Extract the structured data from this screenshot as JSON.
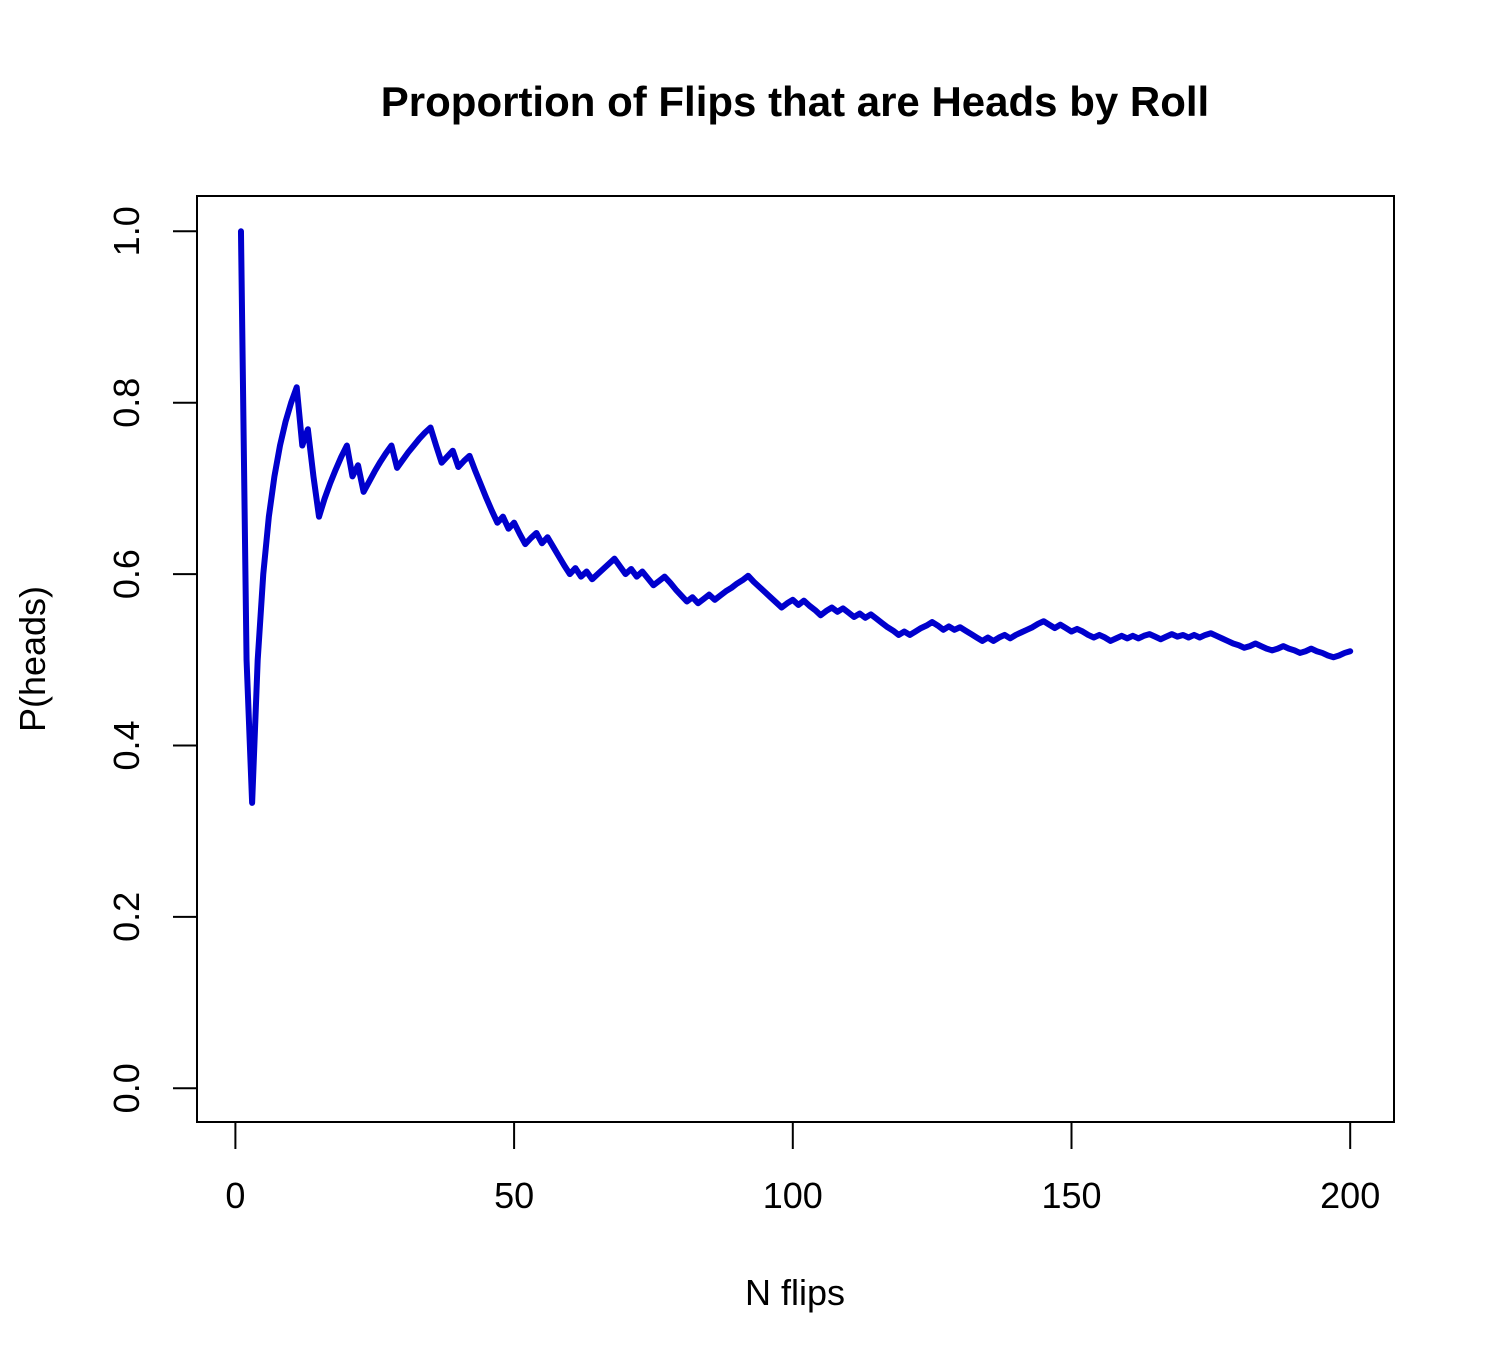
{
  "chart_data": {
    "type": "line",
    "title": "Proportion of Flips that are Heads by Roll",
    "xlabel": "N flips",
    "ylabel": "P(heads)",
    "xlim": [
      0,
      200
    ],
    "ylim": [
      0,
      1.0
    ],
    "x_ticks": [
      0,
      50,
      100,
      150,
      200
    ],
    "x_tick_labels": [
      "0",
      "50",
      "100",
      "150",
      "200"
    ],
    "y_ticks": [
      0.0,
      0.2,
      0.4,
      0.6,
      0.8,
      1.0
    ],
    "y_tick_labels": [
      "0.0",
      "0.2",
      "0.4",
      "0.6",
      "0.8",
      "1.0"
    ],
    "grid": false,
    "series": [
      {
        "color": "#0000cd",
        "x": [
          1,
          2,
          3,
          4,
          5,
          6,
          7,
          8,
          9,
          10,
          11,
          12,
          13,
          14,
          15,
          16,
          17,
          18,
          19,
          20,
          21,
          22,
          23,
          24,
          25,
          26,
          27,
          28,
          29,
          30,
          31,
          32,
          33,
          34,
          35,
          36,
          37,
          38,
          39,
          40,
          41,
          42,
          43,
          44,
          45,
          46,
          47,
          48,
          49,
          50,
          51,
          52,
          53,
          54,
          55,
          56,
          57,
          58,
          59,
          60,
          61,
          62,
          63,
          64,
          65,
          66,
          67,
          68,
          69,
          70,
          71,
          72,
          73,
          74,
          75,
          76,
          77,
          78,
          79,
          80,
          81,
          82,
          83,
          84,
          85,
          86,
          87,
          88,
          89,
          90,
          91,
          92,
          93,
          94,
          95,
          96,
          97,
          98,
          99,
          100,
          101,
          102,
          103,
          104,
          105,
          106,
          107,
          108,
          109,
          110,
          111,
          112,
          113,
          114,
          115,
          116,
          117,
          118,
          119,
          120,
          121,
          122,
          123,
          124,
          125,
          126,
          127,
          128,
          129,
          130,
          131,
          132,
          133,
          134,
          135,
          136,
          137,
          138,
          139,
          140,
          141,
          142,
          143,
          144,
          145,
          146,
          147,
          148,
          149,
          150,
          151,
          152,
          153,
          154,
          155,
          156,
          157,
          158,
          159,
          160,
          161,
          162,
          163,
          164,
          165,
          166,
          167,
          168,
          169,
          170,
          171,
          172,
          173,
          174,
          175,
          176,
          177,
          178,
          179,
          180,
          181,
          182,
          183,
          184,
          185,
          186,
          187,
          188,
          189,
          190,
          191,
          192,
          193,
          194,
          195,
          196,
          197,
          198,
          199,
          200
        ],
        "y": [
          1.0,
          0.5,
          0.333,
          0.5,
          0.6,
          0.667,
          0.714,
          0.75,
          0.778,
          0.8,
          0.818,
          0.75,
          0.769,
          0.714,
          0.667,
          0.688,
          0.706,
          0.722,
          0.737,
          0.75,
          0.714,
          0.727,
          0.696,
          0.708,
          0.72,
          0.731,
          0.741,
          0.75,
          0.724,
          0.733,
          0.742,
          0.75,
          0.758,
          0.765,
          0.771,
          0.75,
          0.73,
          0.737,
          0.744,
          0.725,
          0.732,
          0.738,
          0.721,
          0.705,
          0.689,
          0.674,
          0.66,
          0.667,
          0.653,
          0.66,
          0.647,
          0.635,
          0.642,
          0.648,
          0.636,
          0.643,
          0.632,
          0.621,
          0.61,
          0.6,
          0.607,
          0.597,
          0.603,
          0.594,
          0.6,
          0.606,
          0.612,
          0.618,
          0.609,
          0.6,
          0.606,
          0.597,
          0.603,
          0.595,
          0.587,
          0.592,
          0.597,
          0.59,
          0.582,
          0.575,
          0.568,
          0.573,
          0.566,
          0.571,
          0.576,
          0.57,
          0.575,
          0.58,
          0.584,
          0.589,
          0.593,
          0.598,
          0.591,
          0.585,
          0.579,
          0.573,
          0.567,
          0.561,
          0.566,
          0.57,
          0.564,
          0.569,
          0.563,
          0.558,
          0.552,
          0.557,
          0.561,
          0.556,
          0.56,
          0.555,
          0.55,
          0.554,
          0.549,
          0.553,
          0.548,
          0.543,
          0.538,
          0.534,
          0.529,
          0.533,
          0.529,
          0.533,
          0.537,
          0.54,
          0.544,
          0.54,
          0.535,
          0.539,
          0.535,
          0.538,
          0.534,
          0.53,
          0.526,
          0.522,
          0.526,
          0.522,
          0.526,
          0.529,
          0.525,
          0.529,
          0.532,
          0.535,
          0.538,
          0.542,
          0.545,
          0.541,
          0.537,
          0.541,
          0.537,
          0.533,
          0.536,
          0.533,
          0.529,
          0.526,
          0.529,
          0.526,
          0.522,
          0.525,
          0.528,
          0.525,
          0.528,
          0.525,
          0.528,
          0.53,
          0.527,
          0.524,
          0.527,
          0.53,
          0.527,
          0.529,
          0.526,
          0.529,
          0.526,
          0.529,
          0.531,
          0.528,
          0.525,
          0.522,
          0.519,
          0.517,
          0.514,
          0.516,
          0.519,
          0.516,
          0.513,
          0.511,
          0.513,
          0.516,
          0.513,
          0.511,
          0.508,
          0.51,
          0.513,
          0.51,
          0.508,
          0.505,
          0.503,
          0.505,
          0.508,
          0.51
        ]
      }
    ]
  }
}
